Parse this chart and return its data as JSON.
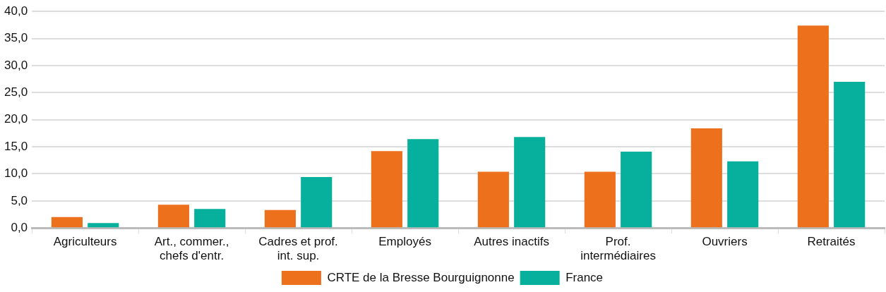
{
  "chart_data": {
    "type": "bar",
    "categories": [
      "Agriculteurs",
      "Art., commer.,\nchefs d'entr.",
      "Cadres et prof.\nint. sup.",
      "Employés",
      "Autres inactifs",
      "Prof.\nintermédiaires",
      "Ouvriers",
      "Retraités"
    ],
    "series": [
      {
        "name": "CRTE de la Bresse Bourguignonne",
        "color": "#ed701d",
        "values": [
          2.0,
          4.3,
          3.3,
          14.2,
          10.4,
          10.4,
          18.4,
          37.4
        ]
      },
      {
        "name": "France",
        "color": "#06b09c",
        "values": [
          0.9,
          3.5,
          9.4,
          16.4,
          16.8,
          14.1,
          12.3,
          27.0
        ]
      }
    ],
    "ylim": [
      0,
      40
    ],
    "yticks": [
      {
        "value": 0,
        "label": "0,0"
      },
      {
        "value": 5,
        "label": "5,0"
      },
      {
        "value": 10,
        "label": "10,0"
      },
      {
        "value": 15,
        "label": "15,0"
      },
      {
        "value": 20,
        "label": "20,0"
      },
      {
        "value": 25,
        "label": "25,0"
      },
      {
        "value": 30,
        "label": "30,0"
      },
      {
        "value": 35,
        "label": "35,0"
      },
      {
        "value": 40,
        "label": "40,0"
      }
    ],
    "grid": "y",
    "legend": "bottom"
  }
}
